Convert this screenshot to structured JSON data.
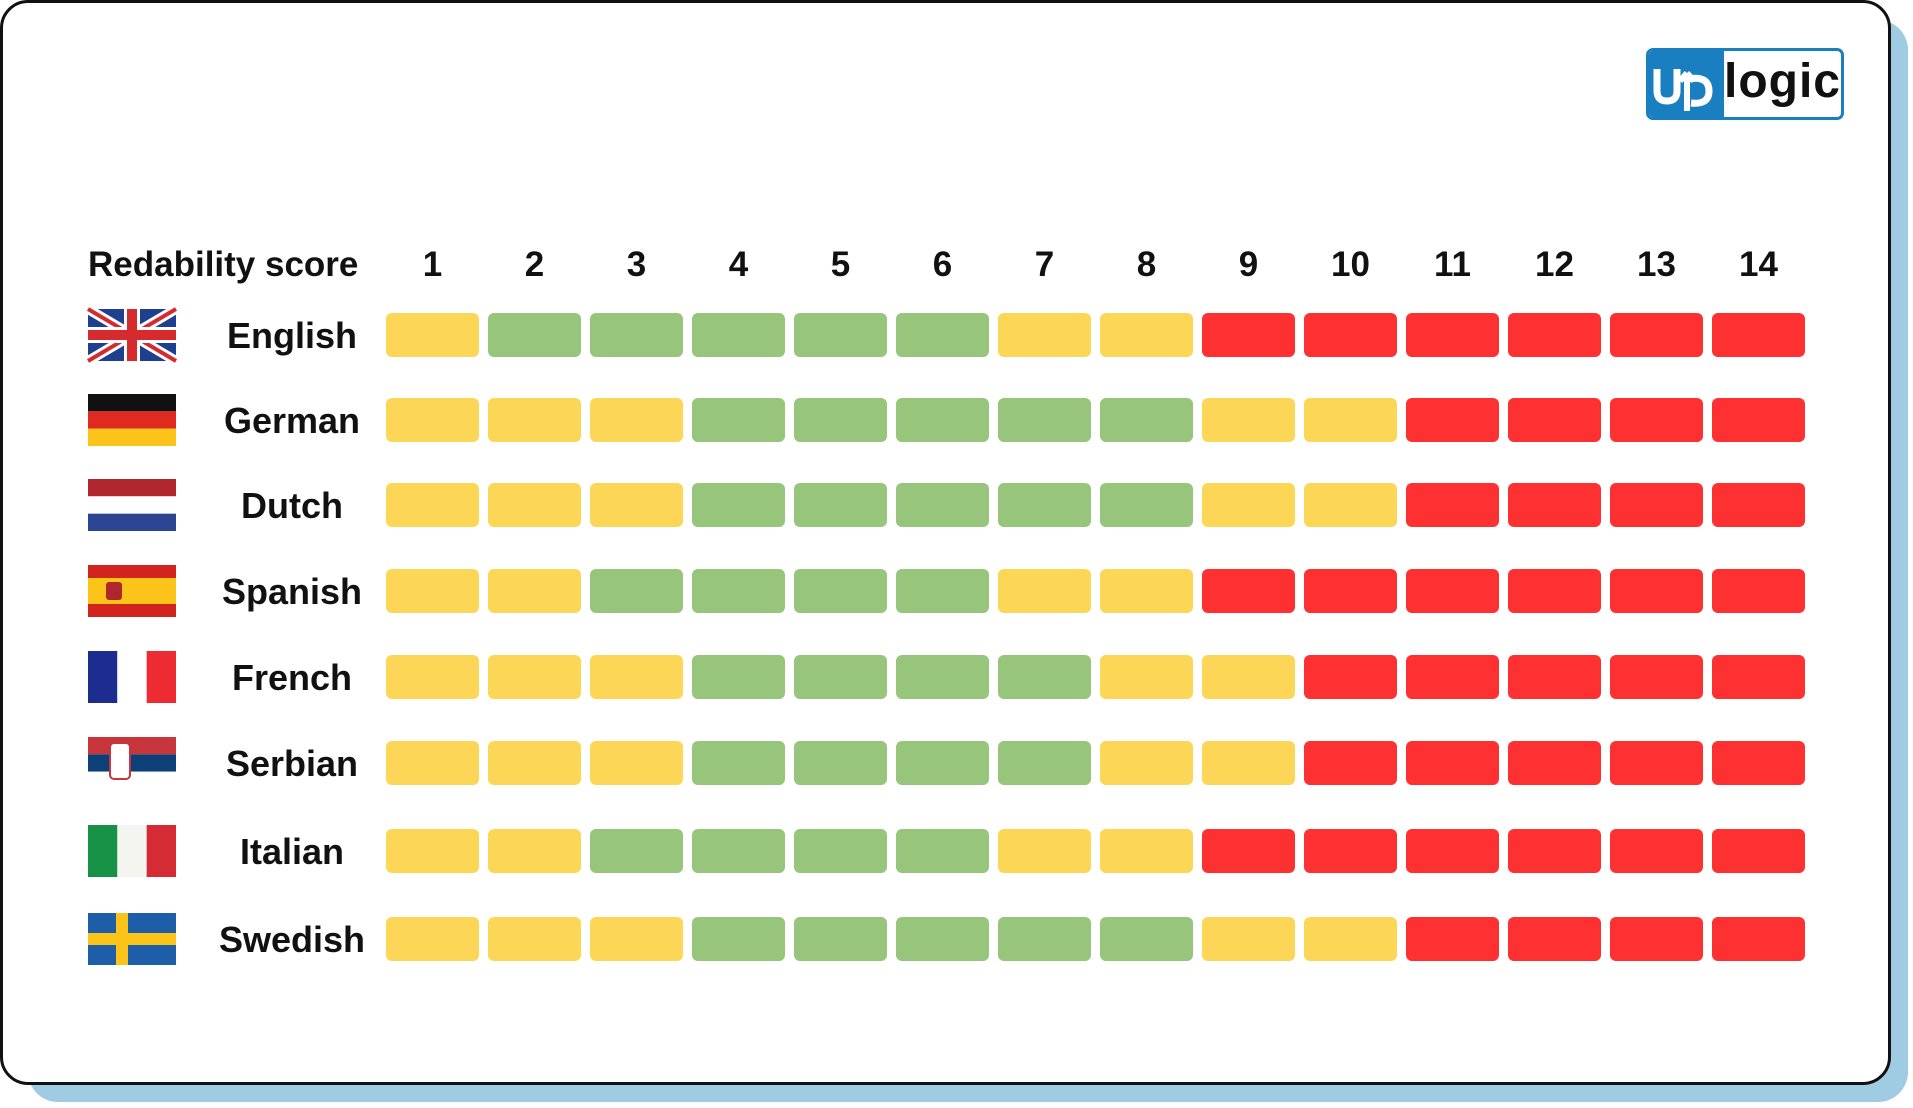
{
  "logo": {
    "text_up": "up",
    "text_logic": "logic",
    "brand_color": "#1a7fc1"
  },
  "chart_data": {
    "type": "heatmap",
    "header_label": "Redability score",
    "columns": [
      1,
      2,
      3,
      4,
      5,
      6,
      7,
      8,
      9,
      10,
      11,
      12,
      13,
      14
    ],
    "color_legend": {
      "green": "#96c57b",
      "yellow": "#fcd757",
      "red": "#fd3132"
    },
    "rows": [
      {
        "language": "English",
        "flag": "uk-flag-icon",
        "values": [
          "yellow",
          "green",
          "green",
          "green",
          "green",
          "green",
          "yellow",
          "yellow",
          "red",
          "red",
          "red",
          "red",
          "red",
          "red"
        ]
      },
      {
        "language": "German",
        "flag": "germany-flag-icon",
        "values": [
          "yellow",
          "yellow",
          "yellow",
          "green",
          "green",
          "green",
          "green",
          "green",
          "yellow",
          "yellow",
          "red",
          "red",
          "red",
          "red"
        ]
      },
      {
        "language": "Dutch",
        "flag": "netherlands-flag-icon",
        "values": [
          "yellow",
          "yellow",
          "yellow",
          "green",
          "green",
          "green",
          "green",
          "green",
          "yellow",
          "yellow",
          "red",
          "red",
          "red",
          "red"
        ]
      },
      {
        "language": "Spanish",
        "flag": "spain-flag-icon",
        "values": [
          "yellow",
          "yellow",
          "green",
          "green",
          "green",
          "green",
          "yellow",
          "yellow",
          "red",
          "red",
          "red",
          "red",
          "red",
          "red"
        ]
      },
      {
        "language": "French",
        "flag": "france-flag-icon",
        "values": [
          "yellow",
          "yellow",
          "yellow",
          "green",
          "green",
          "green",
          "green",
          "yellow",
          "yellow",
          "red",
          "red",
          "red",
          "red",
          "red"
        ]
      },
      {
        "language": "Serbian",
        "flag": "serbia-flag-icon",
        "values": [
          "yellow",
          "yellow",
          "yellow",
          "green",
          "green",
          "green",
          "green",
          "yellow",
          "yellow",
          "red",
          "red",
          "red",
          "red",
          "red"
        ]
      },
      {
        "language": "Italian",
        "flag": "italy-flag-icon",
        "values": [
          "yellow",
          "yellow",
          "green",
          "green",
          "green",
          "green",
          "yellow",
          "yellow",
          "red",
          "red",
          "red",
          "red",
          "red",
          "red"
        ]
      },
      {
        "language": "Swedish",
        "flag": "sweden-flag-icon",
        "values": [
          "yellow",
          "yellow",
          "yellow",
          "green",
          "green",
          "green",
          "green",
          "green",
          "yellow",
          "yellow",
          "red",
          "red",
          "red",
          "red"
        ]
      }
    ]
  }
}
